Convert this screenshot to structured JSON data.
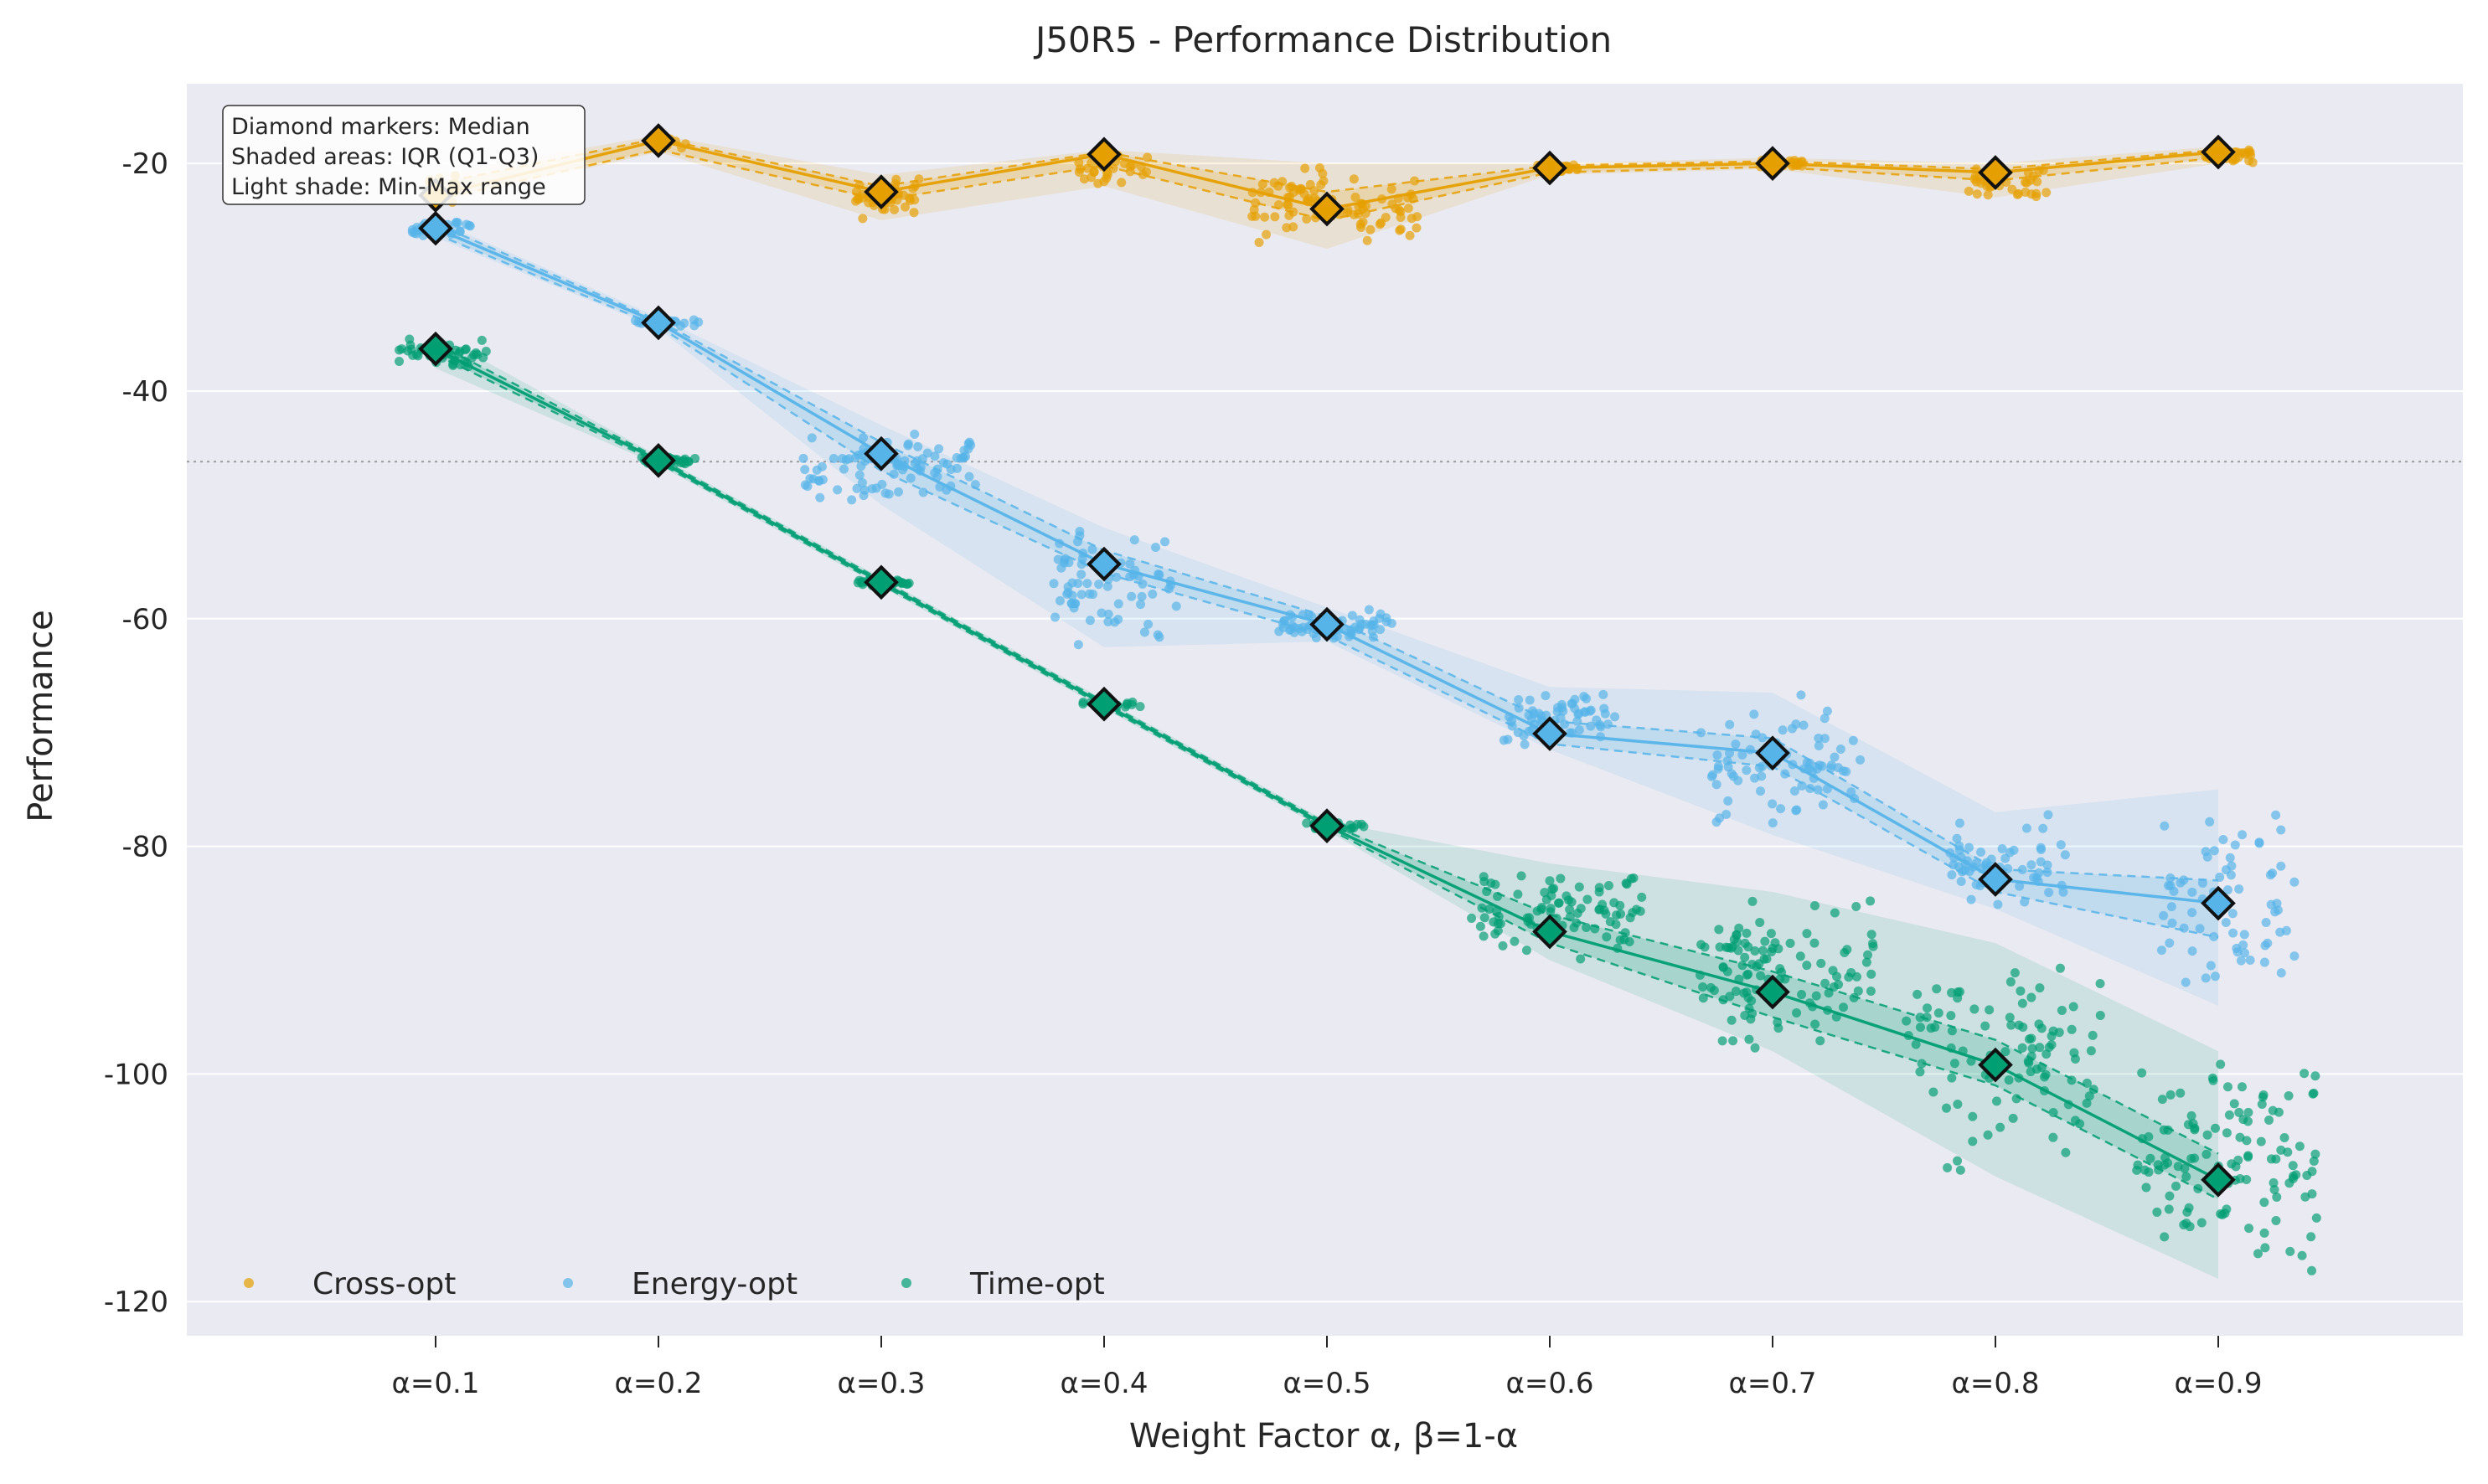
{
  "chart_data": {
    "type": "scatter",
    "title": "J50R5 - Performance Distribution",
    "xlabel": "Weight Factor α, β=1-α",
    "ylabel": "Performance",
    "categories": [
      "α=0.1",
      "α=0.2",
      "α=0.3",
      "α=0.4",
      "α=0.5",
      "α=0.6",
      "α=0.7",
      "α=0.8",
      "α=0.9"
    ],
    "y_ticks": [
      -20,
      -40,
      -60,
      -80,
      -100,
      -120
    ],
    "y_tick_labels": [
      "-20",
      "-40",
      "-60",
      "-80",
      "-100",
      "-120"
    ],
    "ylim": [
      -123,
      -13
    ],
    "xlim": [
      0.0,
      1.0
    ],
    "reference_line_y": -46.2,
    "grid": true,
    "legend_position": "lower-left",
    "annotation_lines": [
      "Diamond markers: Median",
      "Shaded areas: IQR (Q1-Q3)",
      "Light shade: Min-Max range"
    ],
    "series": [
      {
        "name": "Cross-opt",
        "color": "#E69F00",
        "median": [
          -22.8,
          -18.0,
          -22.5,
          -19.2,
          -24.0,
          -20.4,
          -20.0,
          -20.8,
          -19.0
        ],
        "q1": [
          -23.2,
          -18.8,
          -23.2,
          -20.2,
          -25.0,
          -20.8,
          -20.3,
          -21.5,
          -19.5
        ],
        "q3": [
          -21.8,
          -17.8,
          -22.0,
          -19.0,
          -22.5,
          -20.2,
          -19.8,
          -20.5,
          -18.8
        ],
        "min": [
          -23.5,
          -19.0,
          -25.0,
          -22.0,
          -27.5,
          -21.0,
          -20.5,
          -23.0,
          -20.0
        ],
        "max": [
          -21.0,
          -17.5,
          -21.0,
          -18.8,
          -20.0,
          -20.0,
          -19.5,
          -20.0,
          -18.5
        ],
        "point_count": [
          20,
          8,
          36,
          32,
          90,
          20,
          26,
          40,
          26
        ]
      },
      {
        "name": "Energy-opt",
        "color": "#56B4E9",
        "median": [
          -25.7,
          -34.0,
          -45.5,
          -55.2,
          -60.5,
          -70.1,
          -71.8,
          -82.9,
          -85.0
        ],
        "q1": [
          -26.2,
          -34.3,
          -47.0,
          -56.0,
          -61.5,
          -71.0,
          -73.0,
          -84.0,
          -88.0
        ],
        "q3": [
          -25.3,
          -33.8,
          -44.5,
          -54.0,
          -59.8,
          -69.0,
          -70.5,
          -82.0,
          -83.0
        ],
        "min": [
          -26.5,
          -34.5,
          -50.0,
          -62.5,
          -62.0,
          -71.5,
          -79.0,
          -85.5,
          -94.0
        ],
        "max": [
          -25.0,
          -33.5,
          -43.0,
          -52.0,
          -59.0,
          -66.0,
          -66.5,
          -77.0,
          -75.0
        ],
        "point_count": [
          30,
          28,
          90,
          70,
          60,
          60,
          80,
          60,
          70
        ]
      },
      {
        "name": "Time-opt",
        "color": "#009E73",
        "median": [
          -36.3,
          -46.1,
          -56.8,
          -67.5,
          -78.2,
          -87.5,
          -92.8,
          -99.2,
          -109.3
        ],
        "q1": [
          -36.8,
          -46.3,
          -57.0,
          -67.7,
          -78.4,
          -88.5,
          -95.0,
          -101.0,
          -111.0
        ],
        "q3": [
          -35.8,
          -45.9,
          -56.6,
          -67.3,
          -78.0,
          -86.0,
          -91.0,
          -97.0,
          -107.0
        ],
        "min": [
          -38.0,
          -46.5,
          -57.2,
          -67.9,
          -78.6,
          -90.0,
          -98.0,
          -109.0,
          -118.0
        ],
        "max": [
          -35.0,
          -45.7,
          -56.4,
          -67.1,
          -77.8,
          -81.5,
          -84.0,
          -88.5,
          -98.0
        ],
        "point_count": [
          50,
          28,
          28,
          28,
          28,
          90,
          110,
          100,
          120
        ]
      }
    ]
  }
}
